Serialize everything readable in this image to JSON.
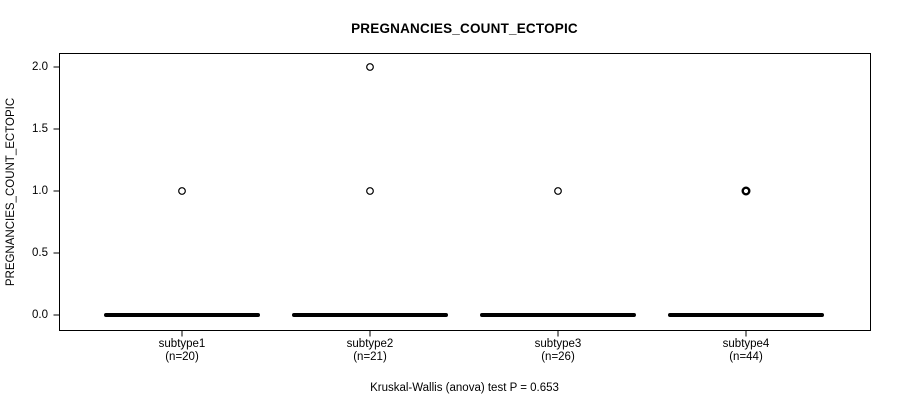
{
  "chart": {
    "title": "PREGNANCIES_COUNT_ECTOPIC",
    "y_axis_label": "PREGNANCIES_COUNT_ECTOPIC",
    "footer": "Kruskal-Wallis (anova) test P = 0.653"
  },
  "chart_data": {
    "type": "boxplot",
    "title": "PREGNANCIES_COUNT_ECTOPIC",
    "ylabel": "PREGNANCIES_COUNT_ECTOPIC",
    "xlabel": "",
    "ylim": [
      0,
      2.07
    ],
    "yticks": [
      0.0,
      0.5,
      1.0,
      1.5,
      2.0
    ],
    "ytick_labels": [
      "0.0",
      "0.5",
      "1.0",
      "1.5",
      "2.0"
    ],
    "grid": false,
    "legend": null,
    "annotation": "Kruskal-Wallis (anova) test P = 0.653",
    "groups": [
      {
        "label": "subtype1",
        "sublabel": "(n=20)",
        "n": 20,
        "whisker_low": 0,
        "q1": 0,
        "median": 0,
        "q3": 0,
        "whisker_high": 0,
        "outliers": [
          1
        ],
        "outlier_overplotted": false
      },
      {
        "label": "subtype2",
        "sublabel": "(n=21)",
        "n": 21,
        "whisker_low": 0,
        "q1": 0,
        "median": 0,
        "q3": 0,
        "whisker_high": 0,
        "outliers": [
          1,
          2
        ],
        "outlier_overplotted": false
      },
      {
        "label": "subtype3",
        "sublabel": "(n=26)",
        "n": 26,
        "whisker_low": 0,
        "q1": 0,
        "median": 0,
        "q3": 0,
        "whisker_high": 0,
        "outliers": [
          1
        ],
        "outlier_overplotted": false
      },
      {
        "label": "subtype4",
        "sublabel": "(n=44)",
        "n": 44,
        "whisker_low": 0,
        "q1": 0,
        "median": 0,
        "q3": 0,
        "whisker_high": 0,
        "outliers": [
          1
        ],
        "outlier_overplotted": true
      }
    ],
    "colors": {
      "line": "#000000",
      "outlier_fill": "#ffffff",
      "background": "#ffffff",
      "text": "#000000"
    }
  }
}
